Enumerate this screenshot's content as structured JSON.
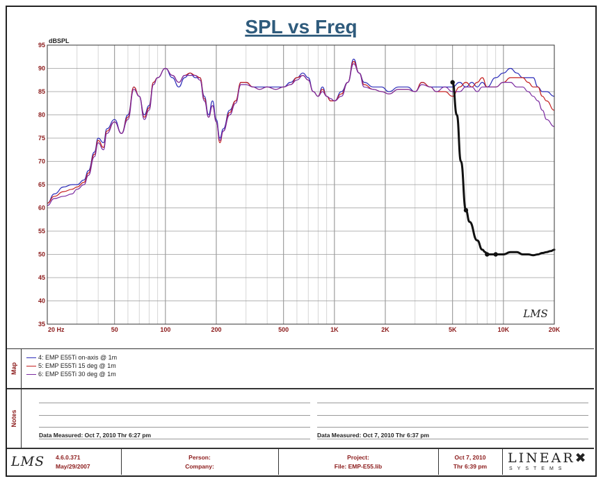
{
  "chart_data": {
    "type": "line",
    "title": "SPL vs Freq",
    "ylabel": "dBSPL",
    "xscale": "log",
    "xlim": [
      20,
      20000
    ],
    "ylim": [
      35,
      95
    ],
    "grid": true,
    "y_ticks": [
      "35",
      "40",
      "45",
      "50",
      "55",
      "60",
      "65",
      "70",
      "75",
      "80",
      "85",
      "90",
      "95"
    ],
    "x_ticks": [
      {
        "v": 20,
        "label": "20  Hz"
      },
      {
        "v": 50,
        "label": "50"
      },
      {
        "v": 100,
        "label": "100"
      },
      {
        "v": 200,
        "label": "200"
      },
      {
        "v": 500,
        "label": "500"
      },
      {
        "v": 1000,
        "label": "1K"
      },
      {
        "v": 2000,
        "label": "2K"
      },
      {
        "v": 5000,
        "label": "5K"
      },
      {
        "v": 10000,
        "label": "10K"
      },
      {
        "v": 20000,
        "label": "20K"
      }
    ],
    "watermark": "LMS",
    "series": [
      {
        "name": "4: EMP E55Ti on-axis @ 1m",
        "color": "#2b2bb8",
        "x": [
          20,
          22,
          25,
          28,
          30,
          33,
          35,
          38,
          40,
          43,
          45,
          50,
          55,
          60,
          65,
          70,
          75,
          80,
          85,
          90,
          100,
          110,
          120,
          130,
          140,
          150,
          160,
          170,
          180,
          190,
          200,
          210,
          220,
          240,
          260,
          280,
          300,
          330,
          360,
          400,
          450,
          500,
          550,
          600,
          650,
          700,
          750,
          800,
          850,
          900,
          950,
          1000,
          1100,
          1200,
          1300,
          1400,
          1500,
          1700,
          1900,
          2100,
          2400,
          2700,
          3000,
          3300,
          3700,
          4000,
          4500,
          5000,
          5500,
          6000,
          6500,
          7000,
          7500,
          8000,
          9000,
          10000,
          11000,
          12000,
          13000,
          14000,
          15000,
          16000,
          17000,
          18000,
          20000
        ],
        "y": [
          61,
          63,
          64.5,
          65,
          65,
          66,
          68,
          72,
          75,
          74,
          77,
          79,
          76,
          80,
          86,
          84,
          80,
          82,
          87,
          88,
          90,
          88,
          86,
          88,
          89,
          88,
          88,
          84,
          80,
          83,
          79,
          75,
          77,
          81,
          83,
          87,
          87,
          86,
          86,
          86,
          86,
          86,
          87,
          88,
          89,
          88,
          85,
          84,
          86,
          84,
          83,
          83,
          85,
          87,
          92,
          89,
          87,
          86,
          86,
          85,
          86,
          86,
          85,
          87,
          86,
          86,
          86,
          86,
          87,
          86,
          87,
          86,
          87,
          86,
          88,
          89,
          90,
          89,
          88,
          88,
          88,
          86,
          85,
          85,
          84
        ]
      },
      {
        "name": "5: EMP E55Ti 15 deg @ 1m",
        "color": "#c41e1e",
        "x": [
          20,
          22,
          25,
          28,
          30,
          33,
          35,
          38,
          40,
          43,
          45,
          50,
          55,
          60,
          65,
          70,
          75,
          80,
          85,
          90,
          100,
          110,
          120,
          130,
          140,
          150,
          160,
          170,
          180,
          190,
          200,
          210,
          220,
          240,
          260,
          280,
          300,
          330,
          360,
          400,
          450,
          500,
          550,
          600,
          650,
          700,
          750,
          800,
          850,
          900,
          950,
          1000,
          1100,
          1200,
          1300,
          1400,
          1500,
          1700,
          1900,
          2100,
          2400,
          2700,
          3000,
          3300,
          3700,
          4000,
          4500,
          5000,
          5500,
          6000,
          6500,
          7000,
          7500,
          8000,
          9000,
          10000,
          11000,
          12000,
          13000,
          14000,
          15000,
          16000,
          17000,
          18000,
          20000
        ],
        "y": [
          61,
          62.5,
          63.5,
          64,
          64.5,
          65.5,
          67.5,
          71.5,
          74.5,
          73,
          76.5,
          78.5,
          76,
          79.5,
          86,
          84,
          79.5,
          81.5,
          87,
          88,
          90,
          88.5,
          87,
          88.5,
          89,
          88.5,
          88,
          83.5,
          79.5,
          82,
          78.5,
          74,
          76.5,
          80.5,
          83,
          87,
          87,
          86,
          85.5,
          86,
          85.5,
          86,
          86.5,
          88,
          88.5,
          87.5,
          85,
          84,
          85.5,
          84,
          83,
          83,
          84.5,
          87,
          91.5,
          89,
          86.5,
          85.5,
          85,
          84.5,
          85.5,
          85.5,
          85,
          87,
          86,
          85,
          85,
          84,
          86,
          87,
          86,
          87,
          88,
          86,
          86,
          87,
          88,
          88,
          88,
          87,
          86,
          86,
          84,
          83,
          81
        ]
      },
      {
        "name": "6: EMP E55Ti 30 deg @ 1m",
        "color": "#7a2aa0",
        "x": [
          20,
          22,
          25,
          28,
          30,
          33,
          35,
          38,
          40,
          43,
          45,
          50,
          55,
          60,
          65,
          70,
          75,
          80,
          85,
          90,
          100,
          110,
          120,
          130,
          140,
          150,
          160,
          170,
          180,
          190,
          200,
          210,
          220,
          240,
          260,
          280,
          300,
          330,
          360,
          400,
          450,
          500,
          550,
          600,
          650,
          700,
          750,
          800,
          850,
          900,
          950,
          1000,
          1100,
          1200,
          1300,
          1400,
          1500,
          1700,
          1900,
          2100,
          2400,
          2700,
          3000,
          3300,
          3700,
          4000,
          4500,
          5000,
          5500,
          6000,
          6500,
          7000,
          7500,
          8000,
          9000,
          10000,
          11000,
          12000,
          13000,
          14000,
          15000,
          16000,
          17000,
          18000,
          20000
        ],
        "y": [
          60.5,
          62,
          62.5,
          63,
          64,
          65,
          67,
          71,
          74,
          72.5,
          76,
          78.5,
          76,
          79,
          85.5,
          84,
          79,
          81,
          86.5,
          88,
          90,
          88.5,
          87,
          88.5,
          88.5,
          88.5,
          87.5,
          83,
          79.5,
          82,
          78.5,
          74.5,
          76.5,
          80,
          82.5,
          86.5,
          86.5,
          86,
          85.5,
          86,
          85.5,
          86,
          86.5,
          87.5,
          88.5,
          87.5,
          85,
          84,
          85,
          84,
          83.5,
          83,
          84,
          87,
          91,
          89,
          86,
          85.5,
          85,
          84.5,
          85.5,
          85.5,
          85,
          86.5,
          86,
          85,
          86,
          85,
          85,
          86,
          86,
          85,
          86,
          86,
          86,
          87,
          87,
          86,
          86,
          85,
          84,
          83,
          81,
          79,
          77.5
        ]
      },
      {
        "name": "",
        "color": "#111111",
        "x": [
          5000,
          5300,
          5600,
          6000,
          6300,
          7000,
          7500,
          7800,
          8000,
          8500,
          9000,
          9500,
          10000,
          11000,
          12000,
          13000,
          14000,
          15000,
          16000,
          17000,
          18000,
          19000,
          20000
        ],
        "y": [
          87,
          80,
          70,
          59.5,
          57,
          53,
          51,
          50.5,
          50,
          50,
          50,
          50,
          50,
          50.5,
          50.5,
          50,
          50,
          49.8,
          50,
          50.3,
          50.5,
          50.7,
          51
        ],
        "marked_points": [
          [
            5000,
            87
          ],
          [
            6000,
            59.5
          ],
          [
            8000,
            50
          ],
          [
            9000,
            50
          ]
        ]
      }
    ]
  },
  "legend_tab": "Map",
  "legend": [
    {
      "label": "4: EMP E55Ti on-axis @ 1m",
      "color": "#2b2bb8"
    },
    {
      "label": "5: EMP E55Ti 15 deg @ 1m",
      "color": "#c41e1e"
    },
    {
      "label": "6: EMP E55Ti 30 deg @ 1m",
      "color": "#7a2aa0"
    }
  ],
  "notes_tab": "Notes",
  "notes": {
    "left_measured": "Data Measured: Oct  7, 2010  Thr  6:27 pm",
    "right_measured": "Data Measured: Oct  7, 2010  Thr  6:37 pm"
  },
  "footer": {
    "logo": "LMS",
    "version": "4.6.0.371",
    "version_date": "May/29/2007",
    "person_label": "Person:",
    "company_label": "Company:",
    "project_label": "Project:",
    "file_label": "File: EMP-E55.lib",
    "date": "Oct 7, 2010",
    "time": "Thr  6:39 pm",
    "brand": "LINEAR",
    "brand_sub": "SYSTEMS"
  }
}
